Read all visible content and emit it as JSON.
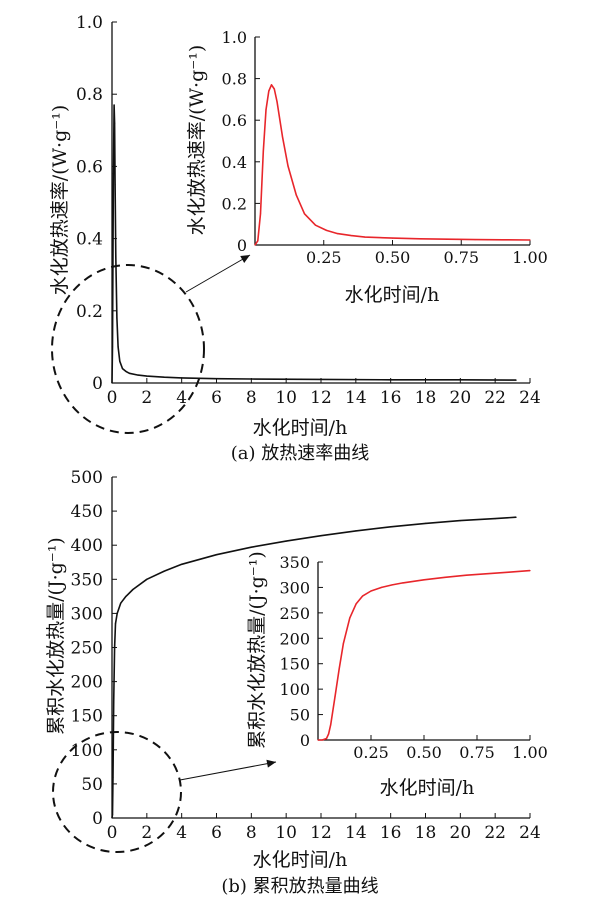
{
  "chart_data": [
    {
      "id": "a_main",
      "type": "line",
      "xlabel": "水化时间/h",
      "ylabel": "水化放热速率/(W·g⁻¹)",
      "caption": "(a) 放热速率曲线",
      "xlim": [
        0,
        24
      ],
      "ylim": [
        0,
        1.0
      ],
      "xticks": [
        "0",
        "2",
        "4",
        "6",
        "8",
        "10",
        "12",
        "14",
        "16",
        "18",
        "20",
        "22",
        "24"
      ],
      "yticks": [
        "0",
        "0.2",
        "0.4",
        "0.6",
        "0.8",
        "1.0"
      ],
      "color": "#111111",
      "series": [
        {
          "x": [
            0,
            0.03,
            0.08,
            0.12,
            0.15,
            0.18,
            0.22,
            0.28,
            0.35,
            0.45,
            0.6,
            0.8,
            1.0,
            1.5,
            2,
            3,
            4,
            6,
            8,
            12,
            16,
            20,
            23.2
          ],
          "values": [
            0,
            0.1,
            0.58,
            0.77,
            0.72,
            0.55,
            0.35,
            0.18,
            0.1,
            0.06,
            0.04,
            0.032,
            0.027,
            0.022,
            0.019,
            0.016,
            0.014,
            0.012,
            0.011,
            0.01,
            0.009,
            0.009,
            0.008
          ]
        }
      ]
    },
    {
      "id": "a_inset",
      "type": "line",
      "xlabel": "水化时间/h",
      "ylabel": "水化放热速率/(W·g⁻¹)",
      "xlim": [
        0,
        1.0
      ],
      "ylim": [
        0,
        1.0
      ],
      "xticks": [
        "0.25",
        "0.50",
        "0.75",
        "1.00"
      ],
      "yticks": [
        "0",
        "0.2",
        "0.4",
        "0.6",
        "0.8",
        "1.0"
      ],
      "color": "#e8262b",
      "series": [
        {
          "x": [
            0,
            0.01,
            0.02,
            0.03,
            0.04,
            0.05,
            0.06,
            0.07,
            0.08,
            0.1,
            0.12,
            0.15,
            0.18,
            0.22,
            0.26,
            0.3,
            0.35,
            0.4,
            0.5,
            0.6,
            0.7,
            0.8,
            0.9,
            1.0
          ],
          "values": [
            0,
            0.02,
            0.15,
            0.45,
            0.65,
            0.74,
            0.77,
            0.75,
            0.69,
            0.52,
            0.38,
            0.24,
            0.15,
            0.095,
            0.07,
            0.055,
            0.045,
            0.038,
            0.033,
            0.03,
            0.028,
            0.026,
            0.025,
            0.024
          ]
        }
      ]
    },
    {
      "id": "b_main",
      "type": "line",
      "xlabel": "水化时间/h",
      "ylabel": "累积水化放热量/(J·g⁻¹)",
      "caption": "(b) 累积放热量曲线",
      "xlim": [
        0,
        24
      ],
      "ylim": [
        0,
        500
      ],
      "xticks": [
        "0",
        "2",
        "4",
        "6",
        "8",
        "10",
        "12",
        "14",
        "16",
        "18",
        "20",
        "22",
        "24"
      ],
      "yticks": [
        "0",
        "50",
        "100",
        "150",
        "200",
        "250",
        "300",
        "350",
        "400",
        "450",
        "500"
      ],
      "color": "#111111",
      "series": [
        {
          "x": [
            0,
            0.03,
            0.06,
            0.1,
            0.15,
            0.2,
            0.3,
            0.5,
            0.8,
            1.2,
            2,
            3,
            4,
            6,
            8,
            10,
            12,
            14,
            16,
            18,
            20,
            22,
            23.2
          ],
          "values": [
            0,
            5,
            60,
            170,
            250,
            285,
            300,
            315,
            325,
            335,
            350,
            362,
            372,
            386,
            397,
            406,
            414,
            421,
            427,
            432,
            436,
            439,
            441
          ]
        }
      ]
    },
    {
      "id": "b_inset",
      "type": "line",
      "xlabel": "水化时间/h",
      "ylabel": "累积水化放热量/(J·g⁻¹)",
      "xlim": [
        0,
        1.0
      ],
      "ylim": [
        0,
        350
      ],
      "xticks": [
        "0.25",
        "0.50",
        "0.75",
        "1.00"
      ],
      "yticks": [
        "0",
        "50",
        "100",
        "150",
        "200",
        "250",
        "300",
        "350"
      ],
      "color": "#e8262b",
      "series": [
        {
          "x": [
            0,
            0.02,
            0.04,
            0.05,
            0.06,
            0.08,
            0.1,
            0.12,
            0.15,
            0.18,
            0.21,
            0.25,
            0.3,
            0.35,
            0.4,
            0.5,
            0.6,
            0.7,
            0.8,
            0.9,
            1.0
          ],
          "values": [
            0,
            0,
            3,
            12,
            30,
            85,
            140,
            190,
            240,
            268,
            283,
            293,
            300,
            305,
            309,
            315,
            320,
            324,
            327,
            330,
            333
          ]
        }
      ]
    }
  ]
}
